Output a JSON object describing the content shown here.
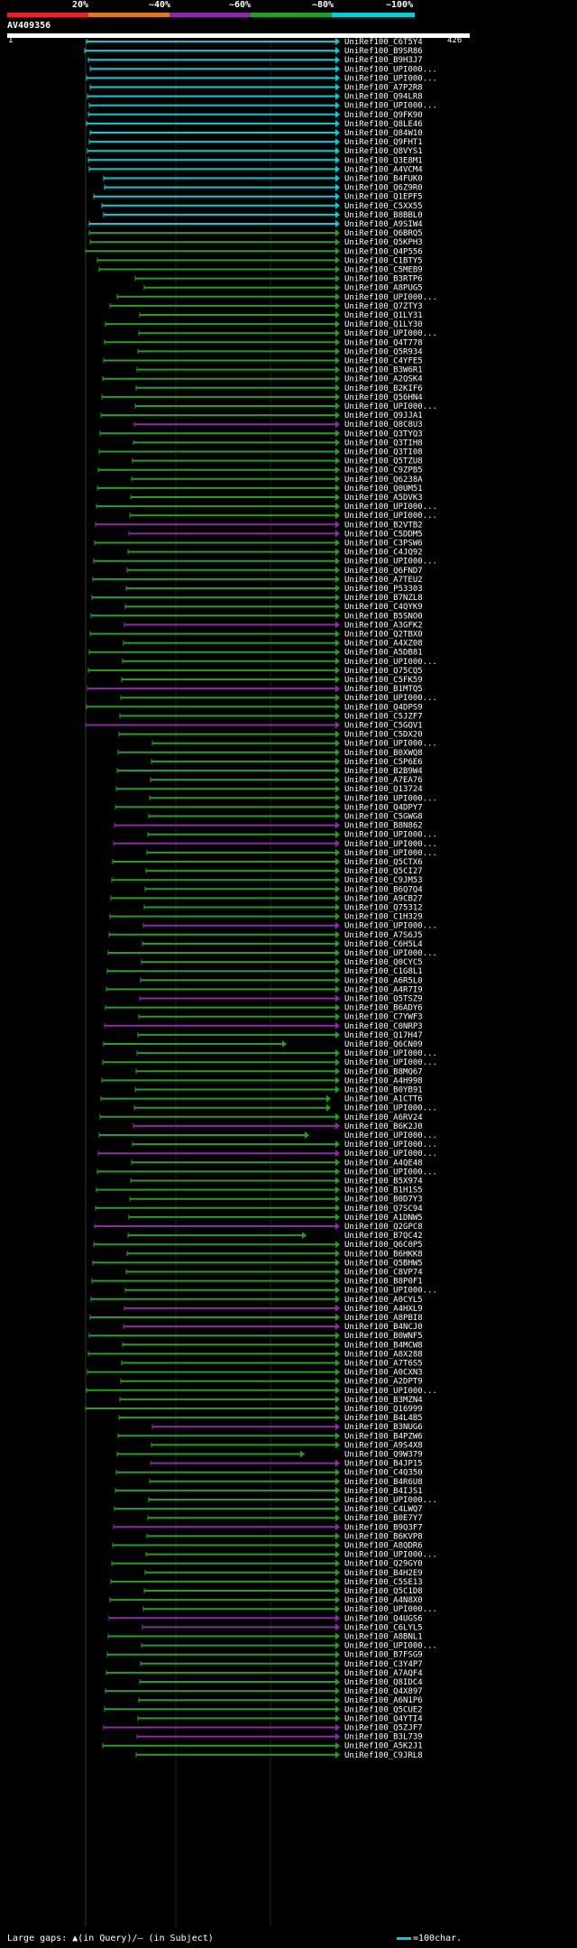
{
  "legend": {
    "labels": [
      "20%",
      "~40%",
      "~60%",
      "~80%",
      "~100%"
    ],
    "colors": [
      "#e8202a",
      "#e07a18",
      "#8e2aa8",
      "#22a022",
      "#00cfd8"
    ]
  },
  "query": {
    "title": "AV409356",
    "start": "1",
    "end": "426"
  },
  "footer": {
    "left": "Large gaps: ▲(in Query)/— (in Subject)",
    "right": "=100char."
  },
  "hits": [
    "UniRef100_C6T5Y4",
    "UniRef100_B9SR86",
    "UniRef100_B9H3J7",
    "UniRef100_UPI000...",
    "UniRef100_UPI000...",
    "UniRef100_A7P2R8",
    "UniRef100_Q94LR8",
    "UniRef100_UPI000...",
    "UniRef100_Q9FK90",
    "UniRef100_Q8LE46",
    "UniRef100_Q84W10",
    "UniRef100_Q9FHT1",
    "UniRef100_Q8VYS1",
    "UniRef100_Q3E8M1",
    "UniRef100_A4VCM4",
    "UniRef100_B4FUK0",
    "UniRef100_Q6Z9R0",
    "UniRef100_Q1EPF5",
    "UniRef100_C5XX55",
    "UniRef100_B8BBL0",
    "UniRef100_A9SIW4",
    "UniRef100_Q6BRQ5",
    "UniRef100_Q5KPH3",
    "UniRef100_Q4P556",
    "UniRef100_C1BTY5",
    "UniRef100_C5MEB9",
    "UniRef100_B3RTP6",
    "UniRef100_A8PUG5",
    "UniRef100_UPI000...",
    "UniRef100_Q7ZTY3",
    "UniRef100_Q1LY31",
    "UniRef100_Q1LY30",
    "UniRef100_UPI000...",
    "UniRef100_Q4T778",
    "UniRef100_Q5R934",
    "UniRef100_C4YFE5",
    "UniRef100_B3W6R1",
    "UniRef100_A2QSK4",
    "UniRef100_B2KIF6",
    "UniRef100_Q56HN4",
    "UniRef100_UPI000...",
    "UniRef100_Q9JJA1",
    "UniRef100_Q8C8U3",
    "UniRef100_Q3TYQ3",
    "UniRef100_Q3TIH8",
    "UniRef100_Q3TI08",
    "UniRef100_Q5TZU8",
    "UniRef100_C9ZPB5",
    "UniRef100_Q6238A",
    "UniRef100_Q0UM51",
    "UniRef100_A5DVK3",
    "UniRef100_UPI000...",
    "UniRef100_UPI000...",
    "UniRef100_B2VTB2",
    "UniRef100_C5DDM5",
    "UniRef100_C3PSW6",
    "UniRef100_C4JQ92",
    "UniRef100_UPI000...",
    "UniRef100_Q6FND7",
    "UniRef100_A7TEU2",
    "UniRef100_P53303",
    "UniRef100_B7NZL8",
    "UniRef100_C4QYK9",
    "UniRef100_B5SNO0",
    "UniRef100_A3GFK2",
    "UniRef100_Q2TBX0",
    "UniRef100_A4XZ08",
    "UniRef100_A5DB81",
    "UniRef100_UPI000...",
    "UniRef100_Q75CQ5",
    "UniRef100_C5FK59",
    "UniRef100_B1MTQ5",
    "UniRef100_UPI000...",
    "UniRef100_Q4DPS9",
    "UniRef100_C5JZF7",
    "UniRef100_C5GQV1",
    "UniRef100_C5DX20",
    "UniRef100_UPI000...",
    "UniRef100_B0XWQ8",
    "UniRef100_C5P6E6",
    "UniRef100_B2B9W4",
    "UniRef100_A7EA76",
    "UniRef100_Q13724",
    "UniRef100_UPI000...",
    "UniRef100_Q4DPY7",
    "UniRef100_C5GWG8",
    "UniRef100_B8N862",
    "UniRef100_UPI000...",
    "UniRef100_UPI000...",
    "UniRef100_UPI000...",
    "UniRef100_Q5CTX6",
    "UniRef100_Q5CI27",
    "UniRef100_C9JM53",
    "UniRef100_B6Q7Q4",
    "UniRef100_A9CB27",
    "UniRef100_Q75312",
    "UniRef100_C1H329",
    "UniRef100_UPI000...",
    "UniRef100_A7S6J5",
    "UniRef100_C6H5L4",
    "UniRef100_UPI000...",
    "UniRef100_Q0CYC5",
    "UniRef100_C1G8L1",
    "UniRef100_A6R5L0",
    "UniRef100_A4R7I9",
    "UniRef100_Q5TSZ9",
    "UniRef100_B6ADY6",
    "UniRef100_C7YWF3",
    "UniRef100_C0NRP3",
    "UniRef100_Q17H47",
    "UniRef100_Q6CN09",
    "UniRef100_UPI000...",
    "UniRef100_UPI000...",
    "UniRef100_B8MQ67",
    "UniRef100_A4H998",
    "UniRef100_B0YB91",
    "UniRef100_A1CTT6",
    "UniRef100_UPI000...",
    "UniRef100_A6RV24",
    "UniRef100_B6K2J0",
    "UniRef100_UPI000...",
    "UniRef100_UPI000...",
    "UniRef100_UPI000...",
    "UniRef100_A4QE48",
    "UniRef100_UPI000...",
    "UniRef100_B5X974",
    "UniRef100_B1H1S5",
    "UniRef100_B0D7Y3",
    "UniRef100_Q7SC94",
    "UniRef100_A1DNW5",
    "UniRef100_Q2GPC8",
    "UniRef100_B7QC42",
    "UniRef100_Q6C0P5",
    "UniRef100_B6HKK8",
    "UniRef100_Q5BHW5",
    "UniRef100_C8VP74",
    "UniRef100_B8P0F1",
    "UniRef100_UPI000...",
    "UniRef100_A0CYL5",
    "UniRef100_A4HXL9",
    "UniRef100_A8PBI8",
    "UniRef100_B4NCJ0",
    "UniRef100_B0WNF5",
    "UniRef100_B4MCW8",
    "UniRef100_A8X288",
    "UniRef100_A7T6S5",
    "UniRef100_A0CXN3",
    "UniRef100_A2DPT9",
    "UniRef100_UPI000...",
    "UniRef100_B3MZN4",
    "UniRef100_Q16999",
    "UniRef100_B4L4B5",
    "UniRef100_B3NUG6",
    "UniRef100_B4PZW6",
    "UniRef100_A9S4X8",
    "UniRef100_Q9W379",
    "UniRef100_B4JP15",
    "UniRef100_C4Q350",
    "UniRef100_B4R6U8",
    "UniRef100_B4IJS1",
    "UniRef100_UPI000...",
    "UniRef100_C4LWQ7",
    "UniRef100_B0E7Y7",
    "UniRef100_B9Q3F7",
    "UniRef100_B6KVP8",
    "UniRef100_A8QDR6",
    "UniRef100_UPI000...",
    "UniRef100_Q29GY0",
    "UniRef100_B4H2E9",
    "UniRef100_C5SE13",
    "UniRef100_Q5C1D8",
    "UniRef100_A4N8X0",
    "UniRef100_UPI000...",
    "UniRef100_Q4UGS6",
    "UniRef100_C6LYL5",
    "UniRef100_A8BNL1",
    "UniRef100_UPI000...",
    "UniRef100_B7FSG9",
    "UniRef100_C3Y4P7",
    "UniRef100_A7AQF4",
    "UniRef100_Q8IDC4",
    "UniRef100_Q4X897",
    "UniRef100_A6N1P6",
    "UniRef100_Q5CUE2",
    "UniRef100_Q4YTI4",
    "UniRef100_Q5ZJF7",
    "UniRef100_B3L739",
    "UniRef100_A5K2J1",
    "UniRef100_C9JRL8"
  ]
}
